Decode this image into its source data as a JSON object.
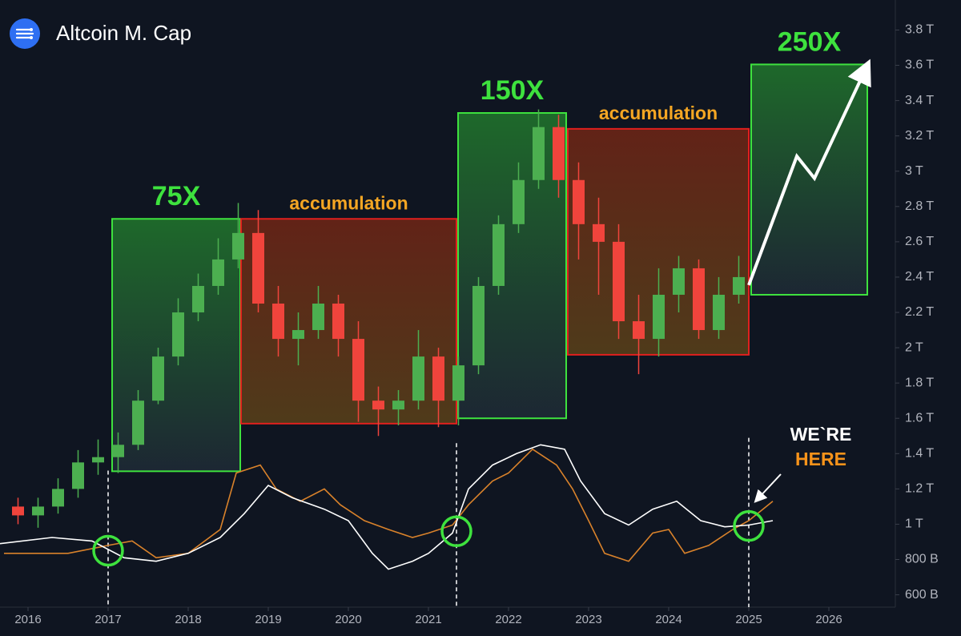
{
  "chart_data": {
    "type": "candlestick",
    "title": "Altcoin M. Cap",
    "xlim": [
      2015.65,
      2026.8
    ],
    "xticks": [
      2016,
      2017,
      2018,
      2019,
      2020,
      2021,
      2022,
      2023,
      2024,
      2025,
      2026
    ],
    "ylim": [
      530,
      3970
    ],
    "yticks": [
      {
        "value": 600,
        "label": "600 B"
      },
      {
        "value": 800,
        "label": "800 B"
      },
      {
        "value": 1000,
        "label": "1 T"
      },
      {
        "value": 1200,
        "label": "1.2 T"
      },
      {
        "value": 1400,
        "label": "1.4 T"
      },
      {
        "value": 1600,
        "label": "1.6 T"
      },
      {
        "value": 1800,
        "label": "1.8 T"
      },
      {
        "value": 2000,
        "label": "2 T"
      },
      {
        "value": 2200,
        "label": "2.2 T"
      },
      {
        "value": 2400,
        "label": "2.4 T"
      },
      {
        "value": 2600,
        "label": "2.6 T"
      },
      {
        "value": 2800,
        "label": "2.8 T"
      },
      {
        "value": 3000,
        "label": "3 T"
      },
      {
        "value": 3200,
        "label": "3.2 T"
      },
      {
        "value": 3400,
        "label": "3.4 T"
      },
      {
        "value": 3600,
        "label": "3.6 T"
      },
      {
        "value": 3800,
        "label": "3.8 T"
      }
    ],
    "grid": false,
    "up_color": "#4caf50",
    "down_color": "#f0443c",
    "candles": {
      "x": [
        2015.75,
        2016,
        2016.25,
        2016.5,
        2016.75,
        2017,
        2017.25,
        2017.5,
        2017.75,
        2018,
        2018.25,
        2018.5,
        2018.75,
        2019,
        2019.25,
        2019.5,
        2019.75,
        2020,
        2020.25,
        2020.5,
        2020.75,
        2021,
        2021.25,
        2021.5,
        2021.75,
        2022,
        2022.25,
        2022.5,
        2022.75,
        2023,
        2023.25,
        2023.5,
        2023.75,
        2024,
        2024.25,
        2024.5,
        2024.75
      ],
      "open": [
        1100,
        1050,
        1100,
        1200,
        1350,
        1380,
        1450,
        1700,
        1950,
        2200,
        2350,
        2500,
        2650,
        2250,
        2050,
        2100,
        2250,
        2050,
        1700,
        1650,
        1700,
        1950,
        1700,
        1900,
        2350,
        2700,
        2950,
        3250,
        2950,
        2700,
        2600,
        2150,
        2050,
        2300,
        2450,
        2100,
        2300
      ],
      "high": [
        1150,
        1150,
        1260,
        1420,
        1480,
        1520,
        1760,
        2000,
        2280,
        2420,
        2620,
        2820,
        2780,
        2350,
        2200,
        2350,
        2300,
        2150,
        1780,
        1760,
        2100,
        2000,
        1950,
        2400,
        2750,
        3050,
        3350,
        3320,
        3050,
        2850,
        2700,
        2300,
        2450,
        2520,
        2500,
        2400,
        2520
      ],
      "low": [
        1000,
        980,
        1060,
        1150,
        1280,
        1290,
        1420,
        1680,
        1900,
        2150,
        2300,
        2450,
        2200,
        1950,
        1900,
        2050,
        1950,
        1580,
        1500,
        1560,
        1650,
        1550,
        1560,
        1850,
        2300,
        2650,
        2900,
        2850,
        2500,
        2300,
        2050,
        1850,
        1950,
        2200,
        2050,
        2050,
        2250
      ],
      "close": [
        1050,
        1100,
        1200,
        1350,
        1380,
        1450,
        1700,
        1950,
        2200,
        2350,
        2500,
        2650,
        2250,
        2050,
        2100,
        2250,
        2050,
        1700,
        1650,
        1700,
        1950,
        1700,
        1900,
        2350,
        2700,
        2950,
        3250,
        2950,
        2700,
        2600,
        2150,
        2050,
        2300,
        2450,
        2100,
        2300,
        2400
      ]
    },
    "lines": [
      {
        "color": "#d9822b",
        "x": [
          2015.7,
          2016.5,
          2017.0,
          2017.3,
          2017.6,
          2018.0,
          2018.4,
          2018.6,
          2018.9,
          2019.1,
          2019.4,
          2019.7,
          2019.9,
          2020.2,
          2020.5,
          2020.8,
          2021.0,
          2021.3,
          2021.5,
          2021.8,
          2022.0,
          2022.3,
          2022.6,
          2022.8,
          2023.0,
          2023.2,
          2023.5,
          2023.8,
          2024.0,
          2024.2,
          2024.5,
          2024.8,
          2025.0,
          2025.3
        ],
        "values": [
          835,
          835,
          880,
          905,
          810,
          835,
          970,
          1290,
          1335,
          1200,
          1130,
          1200,
          1110,
          1020,
          970,
          925,
          950,
          995,
          1110,
          1245,
          1290,
          1425,
          1335,
          1200,
          1020,
          835,
          790,
          950,
          970,
          835,
          880,
          970,
          1020,
          1130
        ]
      },
      {
        "color": "#ffffff",
        "x": [
          2015.65,
          2016.3,
          2016.8,
          2017.2,
          2017.6,
          2018.0,
          2018.4,
          2018.7,
          2019.0,
          2019.3,
          2019.7,
          2020.0,
          2020.3,
          2020.5,
          2020.8,
          2021.0,
          2021.3,
          2021.5,
          2021.8,
          2022.1,
          2022.4,
          2022.7,
          2022.9,
          2023.2,
          2023.5,
          2023.8,
          2024.1,
          2024.4,
          2024.7,
          2025.0,
          2025.3
        ],
        "values": [
          890,
          925,
          905,
          810,
          790,
          835,
          925,
          1060,
          1220,
          1150,
          1085,
          1020,
          835,
          745,
          790,
          835,
          950,
          1200,
          1335,
          1400,
          1450,
          1425,
          1245,
          1060,
          995,
          1085,
          1130,
          1020,
          985,
          995,
          1020
        ]
      }
    ],
    "zones": [
      {
        "label": "75X",
        "kind": "rally",
        "color": "#3ee23e",
        "x": [
          2017.05,
          2018.65
        ],
        "y": [
          1300,
          2730
        ]
      },
      {
        "label": "accumulation",
        "kind": "accumulation",
        "color": "#e0201e",
        "label_color": "#f5a623",
        "x": [
          2018.66,
          2021.35
        ],
        "y": [
          1570,
          2730
        ]
      },
      {
        "label": "150X",
        "kind": "rally",
        "color": "#3ee23e",
        "x": [
          2021.37,
          2022.72
        ],
        "y": [
          1600,
          3330
        ]
      },
      {
        "label": "accumulation",
        "kind": "accumulation",
        "color": "#e0201e",
        "label_color": "#f5a623",
        "x": [
          2022.74,
          2025.0
        ],
        "y": [
          1960,
          3240
        ]
      },
      {
        "label": "250X",
        "kind": "rally",
        "color": "#3ee23e",
        "x": [
          2025.03,
          2026.48
        ],
        "y": [
          2300,
          3605
        ]
      }
    ],
    "projection": {
      "color": "#ffffff",
      "x": [
        2025.0,
        2025.6,
        2025.82,
        2026.45
      ],
      "values": [
        2355,
        3085,
        2960,
        3570
      ]
    },
    "signals": {
      "color": "#3ee23e",
      "x": [
        2017.0,
        2021.35,
        2025.0
      ],
      "values": [
        850,
        960,
        990
      ]
    },
    "annotations": [
      {
        "text": "WE`RE",
        "color": "#ffffff"
      },
      {
        "text": "HERE",
        "color": "#f7931a"
      }
    ]
  }
}
